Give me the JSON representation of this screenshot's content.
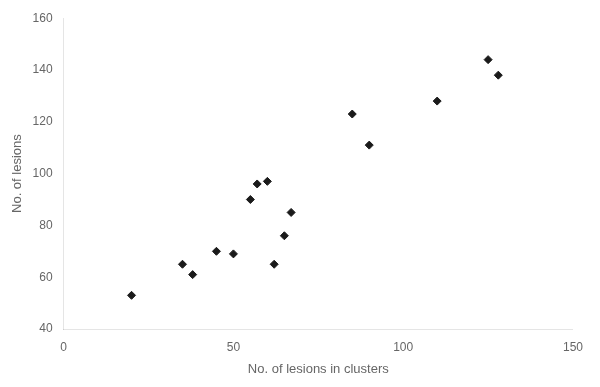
{
  "chart_data": {
    "type": "scatter",
    "x": [
      20,
      35,
      38,
      45,
      50,
      55,
      57,
      60,
      62,
      65,
      67,
      85,
      90,
      110,
      125,
      128
    ],
    "y": [
      53,
      65,
      61,
      70,
      69,
      90,
      96,
      97,
      65,
      76,
      85,
      123,
      111,
      128,
      144,
      138
    ],
    "xlabel": "No. of lesions in clusters",
    "ylabel": "No. of lesions",
    "xlim": [
      0,
      150
    ],
    "ylim": [
      40,
      160
    ],
    "xticks": [
      0,
      50,
      100,
      150
    ],
    "yticks": [
      40,
      60,
      80,
      100,
      120,
      140,
      160
    ],
    "marker": "diamond",
    "color": "#1a1a1a",
    "grid": false
  }
}
